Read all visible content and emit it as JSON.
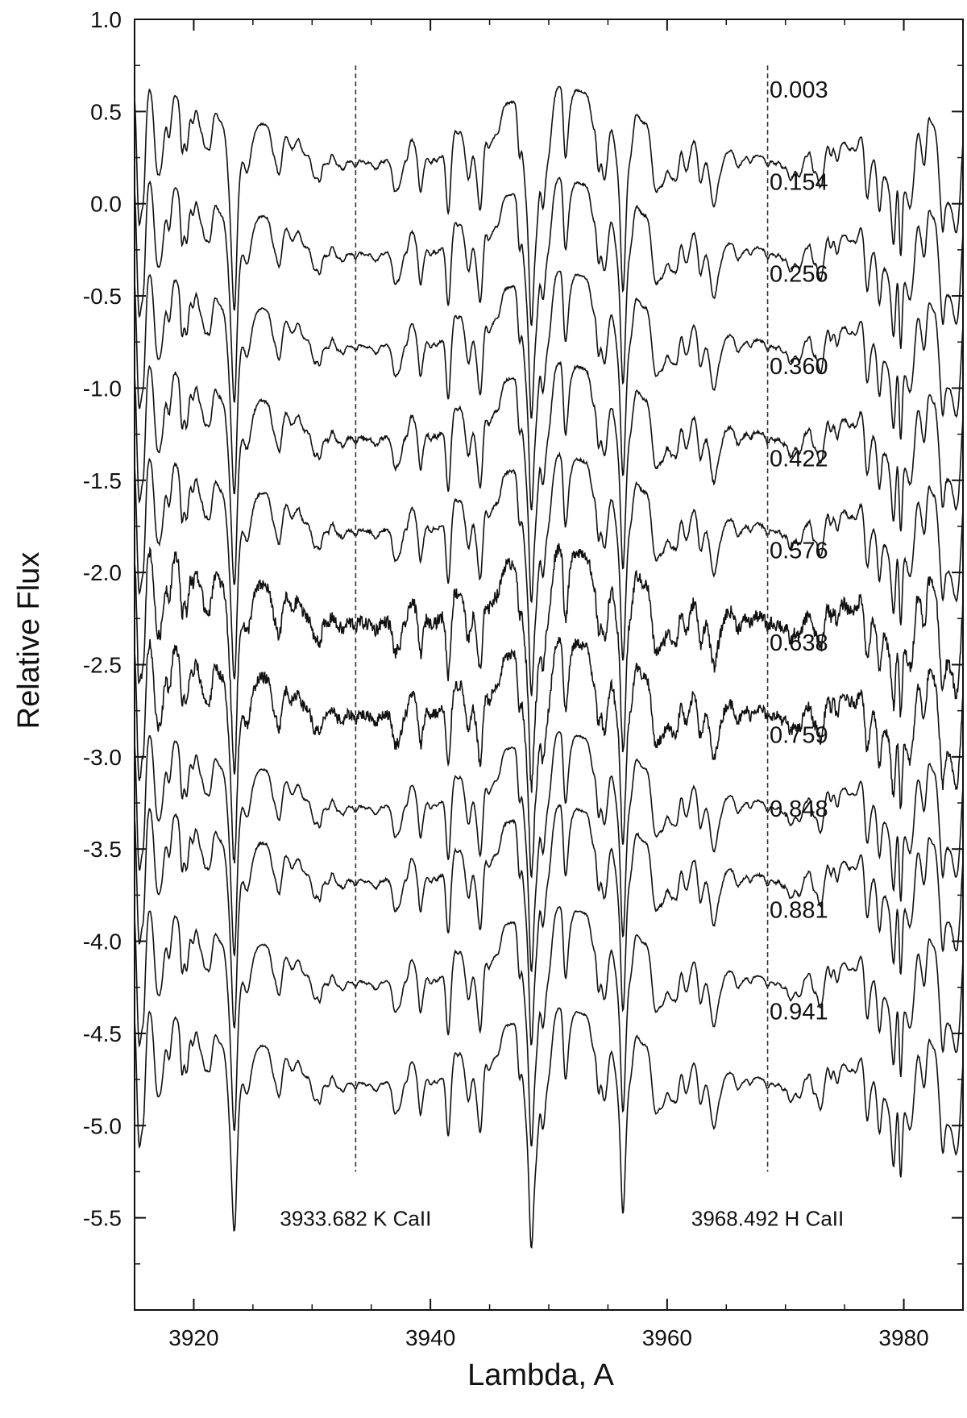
{
  "chart_data": {
    "type": "line",
    "xlabel": "Lambda,  A",
    "ylabel": "Relative  Flux",
    "xlim": [
      3915,
      3985
    ],
    "ylim": [
      -6.0,
      1.0
    ],
    "x_ticks": [
      3920,
      3940,
      3960,
      3980
    ],
    "y_ticks": [
      1.0,
      0.5,
      0.0,
      -0.5,
      -1.0,
      -1.5,
      -2.0,
      -2.5,
      -3.0,
      -3.5,
      -4.0,
      -4.5,
      -5.0,
      -5.5
    ],
    "grid": false,
    "series": [
      {
        "name": "0.003",
        "offset": 0.0,
        "noise": 0.005
      },
      {
        "name": "0.154",
        "offset": -0.5,
        "noise": 0.005
      },
      {
        "name": "0.256",
        "offset": -1.0,
        "noise": 0.005
      },
      {
        "name": "0.360",
        "offset": -1.5,
        "noise": 0.008
      },
      {
        "name": "0.422",
        "offset": -2.0,
        "noise": 0.008
      },
      {
        "name": "0.576",
        "offset": -2.5,
        "noise": 0.035
      },
      {
        "name": "0.638",
        "offset": -3.0,
        "noise": 0.03
      },
      {
        "name": "0.759",
        "offset": -3.5,
        "noise": 0.004
      },
      {
        "name": "0.848",
        "offset": -3.9,
        "noise": 0.006
      },
      {
        "name": "0.881",
        "offset": -4.45,
        "noise": 0.004
      },
      {
        "name": "0.941",
        "offset": -5.0,
        "noise": 0.004
      }
    ],
    "reference_lines": [
      {
        "x": 3933.682,
        "label": "3933.682  K CaII"
      },
      {
        "x": 3968.492,
        "label": "3968.492  H CaII"
      }
    ]
  }
}
